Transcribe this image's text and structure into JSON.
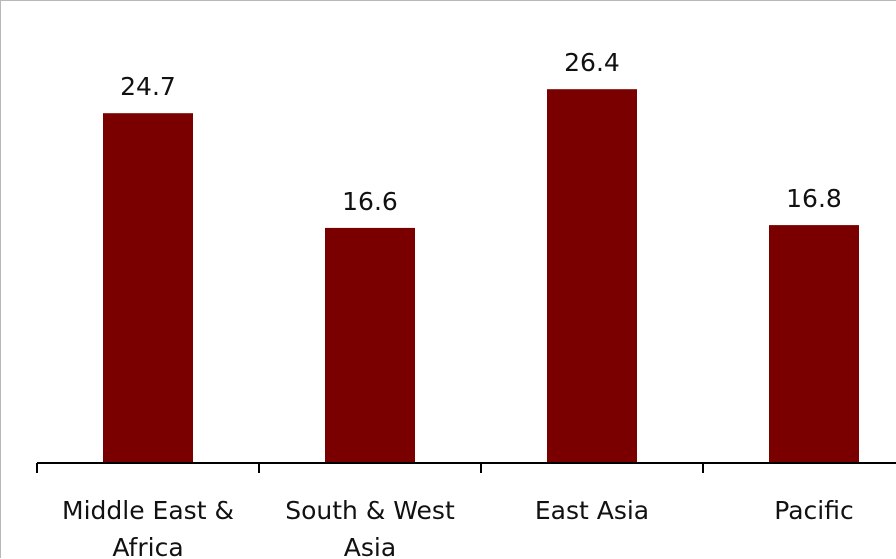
{
  "chart_data": {
    "type": "bar",
    "categories": [
      [
        "Middle East &",
        "Africa"
      ],
      [
        "South & West",
        "Asia"
      ],
      [
        "East Asia"
      ],
      [
        "Pacific"
      ]
    ],
    "values": [
      24.7,
      16.6,
      26.4,
      16.8
    ],
    "data_labels": [
      "24.7",
      "16.6",
      "26.4",
      "16.8"
    ],
    "ylim": [
      0,
      28.6
    ],
    "bar_color": "#7a0000",
    "grid": false,
    "legend": "none"
  }
}
